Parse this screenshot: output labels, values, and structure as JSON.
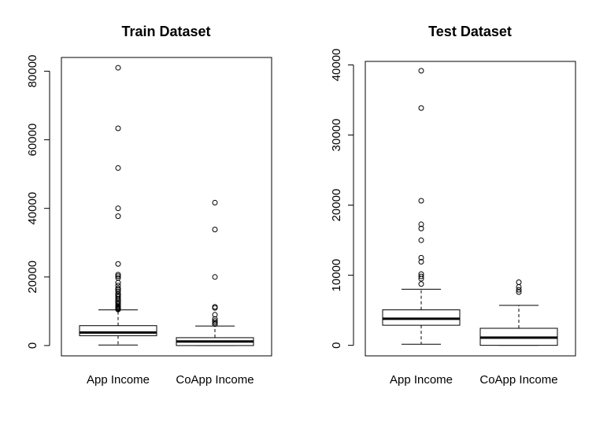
{
  "chart_data": [
    {
      "type": "boxplot",
      "title": "Train Dataset",
      "xlabel": "",
      "ylabel": "",
      "ylim": [
        -3000,
        84000
      ],
      "yticks": [
        0,
        20000,
        40000,
        60000,
        80000
      ],
      "yticklabels": [
        "0",
        "20000",
        "40000",
        "60000",
        "80000"
      ],
      "grid": false,
      "categories": [
        "App Income",
        "CoApp Income"
      ],
      "boxes": [
        {
          "name": "App Income",
          "whisker_low": 150,
          "q1": 2875,
          "median": 3812,
          "q3": 5795,
          "whisker_high": 10400,
          "outliers": [
            81000,
            63337,
            51763,
            39999,
            37719,
            23803,
            20667,
            20233,
            19730,
            18333,
            17500,
            16692,
            16250,
            15759,
            15000,
            14999,
            14583,
            14166,
            13650,
            13262,
            12876,
            12500,
            12000,
            11500,
            11250,
            11000,
            10833,
            10750,
            10500
          ]
        },
        {
          "name": "CoApp Income",
          "whisker_low": 0,
          "q1": 0,
          "median": 1188,
          "q3": 2297,
          "whisker_high": 5700,
          "outliers": [
            41667,
            33837,
            20000,
            11300,
            10968,
            8980,
            7750,
            7166,
            6666,
            6250
          ]
        }
      ]
    },
    {
      "type": "boxplot",
      "title": "Test Dataset",
      "xlabel": "",
      "ylabel": "",
      "ylim": [
        -1500,
        40500
      ],
      "yticks": [
        0,
        10000,
        20000,
        30000,
        40000
      ],
      "yticklabels": [
        "0",
        "10000",
        "20000",
        "30000",
        "40000"
      ],
      "grid": false,
      "categories": [
        "App Income",
        "CoApp Income"
      ],
      "boxes": [
        {
          "name": "App Income",
          "whisker_low": 150,
          "q1": 2864,
          "median": 3786,
          "q3": 5060,
          "whisker_high": 8000,
          "outliers": [
            39167,
            33846,
            20625,
            17263,
            16666,
            14987,
            12500,
            11920,
            10166,
            9833,
            9500,
            8750
          ]
        },
        {
          "name": "CoApp Income",
          "whisker_low": 0,
          "q1": 0,
          "median": 1100,
          "q3": 2430,
          "whisker_high": 5700,
          "outliers": [
            9000,
            8333,
            7916,
            7600
          ]
        }
      ]
    }
  ]
}
